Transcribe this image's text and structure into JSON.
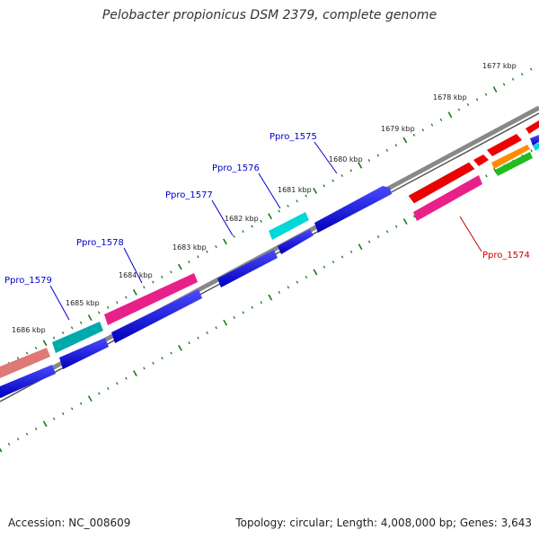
{
  "title": "Pelobacter propionicus DSM 2379, complete genome",
  "kbp_labels": [
    "1677 kbp",
    "1678 kbp",
    "1679 kbp",
    "1680 kbp",
    "1681 kbp",
    "1682 kbp",
    "1683 kbp",
    "1684 kbp",
    "1685 kbp",
    "1686 kbp"
  ],
  "gene_labels": [
    {
      "text": "Ppro_1575",
      "color": "#0000cc"
    },
    {
      "text": "Ppro_1576",
      "color": "#0000cc"
    },
    {
      "text": "Ppro_1577",
      "color": "#0000cc"
    },
    {
      "text": "Ppro_1578",
      "color": "#0000cc"
    },
    {
      "text": "Ppro_1579",
      "color": "#0000cc"
    },
    {
      "text": "Ppro_1574",
      "color": "#cc0000"
    }
  ],
  "colors": {
    "blue": "#0000dd",
    "cyan": "#00d8d8",
    "teal": "#00aaaa",
    "pink": "#e8218a",
    "salmon": "#e07878",
    "red": "#ee0000",
    "orange": "#ff8c00",
    "green": "#22bb22",
    "ticks": "#1a7a1a",
    "backbone": "#777777"
  },
  "footer": {
    "accession": "Accession: NC_008609",
    "summary": "Topology: circular; Length: 4,008,000 bp; Genes: 3,643"
  }
}
